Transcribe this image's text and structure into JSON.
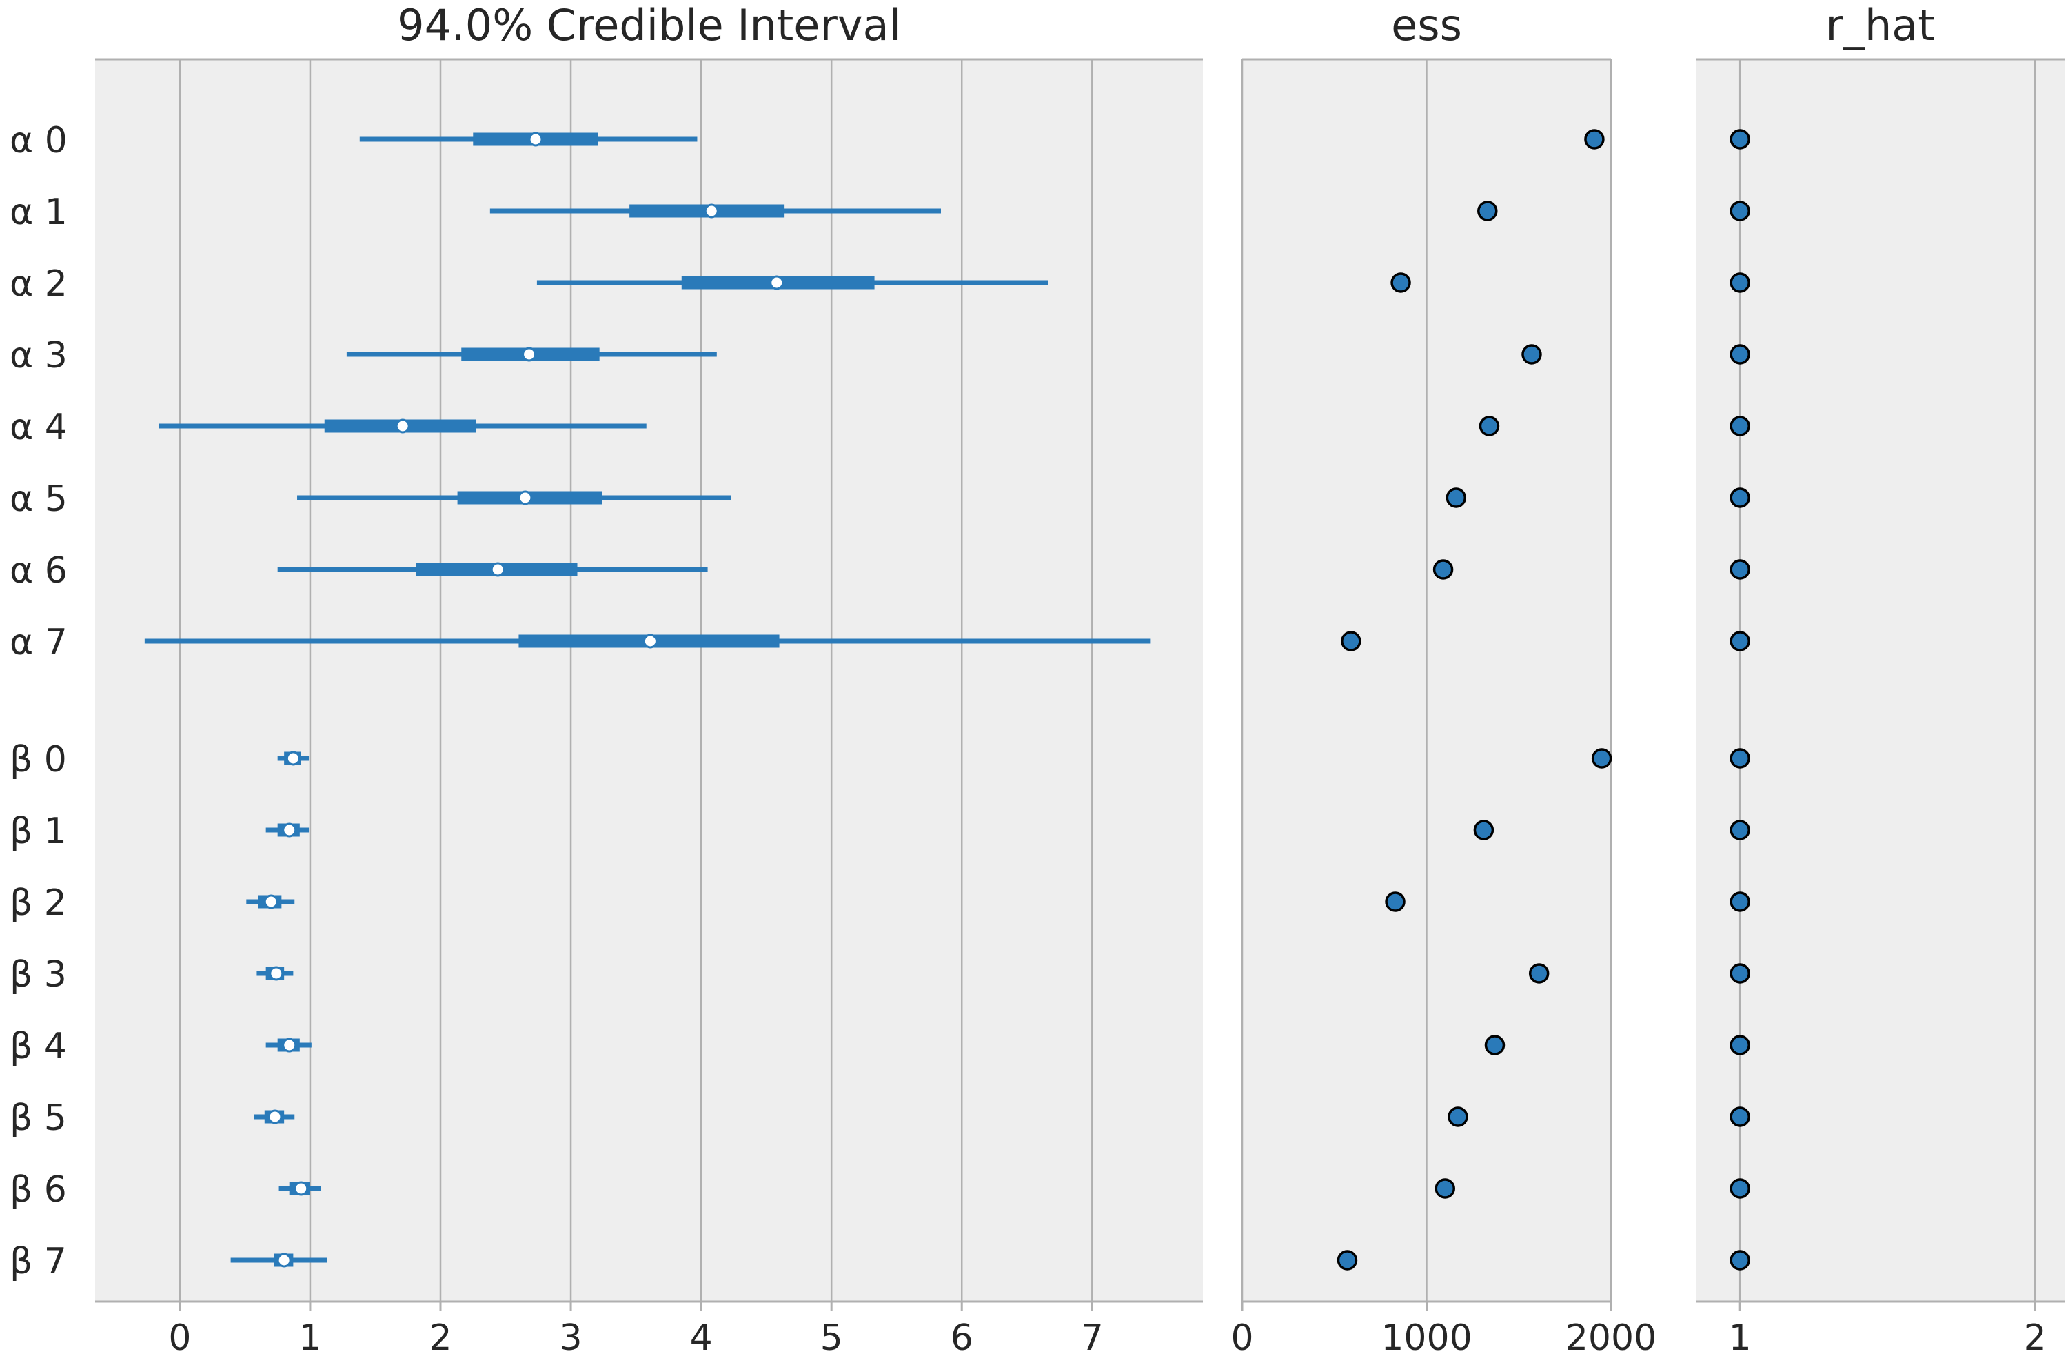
{
  "chart_data": {
    "type": "forest",
    "colors": {
      "series": "#2a7ab9",
      "marker_edge": "#000000",
      "median_fill": "#ffffff",
      "panel_bg": "#eeeeee",
      "grid": "#b0b0b0"
    },
    "grid": true,
    "rows": [
      "α 0",
      "α 1",
      "α 2",
      "α 3",
      "α 4",
      "α 5",
      "α 6",
      "α 7",
      "β 0",
      "β 1",
      "β 2",
      "β 3",
      "β 4",
      "β 5",
      "β 6",
      "β 7"
    ],
    "panels": [
      {
        "title": "94.0% Credible Interval",
        "xlim": [
          -0.65,
          7.85
        ],
        "ticks": [
          0,
          1,
          2,
          3,
          4,
          5,
          6,
          7
        ],
        "tick_labels": [
          "0",
          "1",
          "2",
          "3",
          "4",
          "5",
          "6",
          "7"
        ],
        "intervals": [
          {
            "row": "α 0",
            "hdi_low": 1.38,
            "hdi_high": 3.97,
            "q_low": 2.25,
            "q_high": 3.21,
            "median": 2.73
          },
          {
            "row": "α 1",
            "hdi_low": 2.38,
            "hdi_high": 5.84,
            "q_low": 3.45,
            "q_high": 4.64,
            "median": 4.08
          },
          {
            "row": "α 2",
            "hdi_low": 2.74,
            "hdi_high": 6.66,
            "q_low": 3.85,
            "q_high": 5.33,
            "median": 4.58
          },
          {
            "row": "α 3",
            "hdi_low": 1.28,
            "hdi_high": 4.12,
            "q_low": 2.16,
            "q_high": 3.22,
            "median": 2.68
          },
          {
            "row": "α 4",
            "hdi_low": -0.16,
            "hdi_high": 3.58,
            "q_low": 1.11,
            "q_high": 2.27,
            "median": 1.71
          },
          {
            "row": "α 5",
            "hdi_low": 0.9,
            "hdi_high": 4.23,
            "q_low": 2.13,
            "q_high": 3.24,
            "median": 2.65
          },
          {
            "row": "α 6",
            "hdi_low": 0.75,
            "hdi_high": 4.05,
            "q_low": 1.81,
            "q_high": 3.05,
            "median": 2.44
          },
          {
            "row": "α 7",
            "hdi_low": -0.27,
            "hdi_high": 7.45,
            "q_low": 2.6,
            "q_high": 4.6,
            "median": 3.61
          },
          {
            "row": "β 0",
            "hdi_low": 0.75,
            "hdi_high": 0.99,
            "q_low": 0.8,
            "q_high": 0.93,
            "median": 0.87
          },
          {
            "row": "β 1",
            "hdi_low": 0.66,
            "hdi_high": 0.99,
            "q_low": 0.75,
            "q_high": 0.92,
            "median": 0.84
          },
          {
            "row": "β 2",
            "hdi_low": 0.51,
            "hdi_high": 0.88,
            "q_low": 0.6,
            "q_high": 0.78,
            "median": 0.7
          },
          {
            "row": "β 3",
            "hdi_low": 0.59,
            "hdi_high": 0.87,
            "q_low": 0.66,
            "q_high": 0.8,
            "median": 0.74
          },
          {
            "row": "β 4",
            "hdi_low": 0.66,
            "hdi_high": 1.01,
            "q_low": 0.75,
            "q_high": 0.92,
            "median": 0.84
          },
          {
            "row": "β 5",
            "hdi_low": 0.57,
            "hdi_high": 0.88,
            "q_low": 0.65,
            "q_high": 0.8,
            "median": 0.73
          },
          {
            "row": "β 6",
            "hdi_low": 0.76,
            "hdi_high": 1.08,
            "q_low": 0.84,
            "q_high": 1.0,
            "median": 0.93
          },
          {
            "row": "β 7",
            "hdi_low": 0.39,
            "hdi_high": 1.13,
            "q_low": 0.72,
            "q_high": 0.87,
            "median": 0.8
          }
        ]
      },
      {
        "title": "ess",
        "xlim": [
          0,
          2000
        ],
        "ticks": [
          0,
          1000,
          2000
        ],
        "tick_labels": [
          "0",
          "1000",
          "2000"
        ],
        "values": [
          1910,
          1330,
          860,
          1570,
          1340,
          1160,
          1090,
          590,
          1950,
          1310,
          830,
          1610,
          1370,
          1170,
          1100,
          570
        ]
      },
      {
        "title": "r_hat",
        "xlim": [
          0.85,
          2.1
        ],
        "ticks": [
          1,
          2
        ],
        "tick_labels": [
          "1",
          "2"
        ],
        "values": [
          1.0,
          1.0,
          1.0,
          1.0,
          1.0,
          1.0,
          1.0,
          1.0,
          1.0,
          1.0,
          1.0,
          1.0,
          1.0,
          1.0,
          1.0,
          1.0
        ]
      }
    ]
  }
}
